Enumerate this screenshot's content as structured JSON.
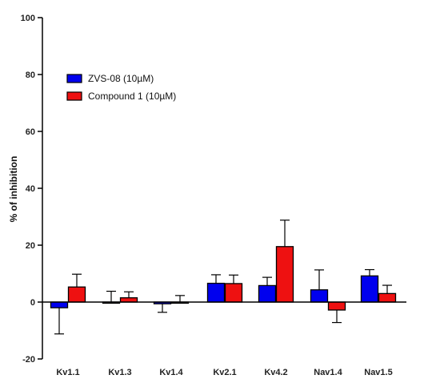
{
  "chart_data": {
    "type": "bar",
    "title": "",
    "xlabel": "",
    "ylabel": "% of inhibition",
    "ylim": [
      -20,
      100
    ],
    "yticks": [
      -20,
      0,
      20,
      40,
      60,
      80,
      100
    ],
    "grid": false,
    "legend_position": "top-left",
    "categories": [
      "Kv1.1",
      "Kv1.3",
      "Kv1.4",
      "Kv2.1",
      "Kv4.2",
      "Nav1.4",
      "Nav1.5"
    ],
    "series": [
      {
        "name": "ZVS-08 (10µM)",
        "color": "#0000ee",
        "values": [
          -2,
          -0.4,
          -0.6,
          6.6,
          5.8,
          4.3,
          9.2
        ],
        "error": [
          9.2,
          4.2,
          3.0,
          3.0,
          2.9,
          7.0,
          2.2
        ],
        "error_direction": [
          -1,
          1,
          -1,
          1,
          1,
          1,
          1
        ]
      },
      {
        "name": "Compound 1 (10µM)",
        "color": "#ee1111",
        "values": [
          5.3,
          1.5,
          -0.4,
          6.5,
          19.5,
          -2.8,
          3.0
        ],
        "error": [
          4.5,
          2.1,
          2.7,
          3.0,
          9.3,
          4.4,
          2.9
        ],
        "error_direction": [
          1,
          1,
          1,
          1,
          1,
          -1,
          1
        ]
      }
    ]
  }
}
